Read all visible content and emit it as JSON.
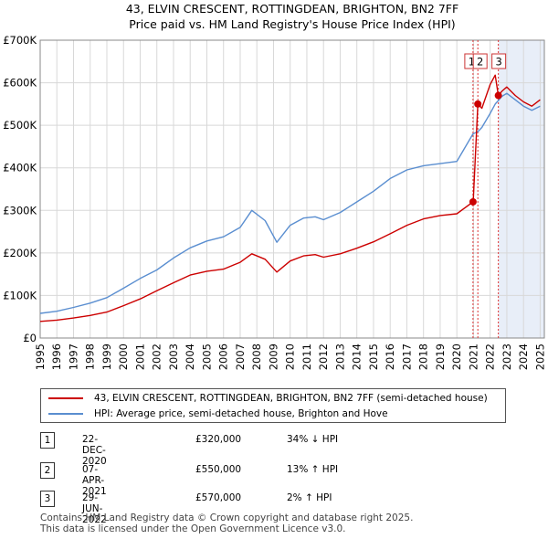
{
  "chart_data": {
    "type": "line",
    "title": "43, ELVIN CRESCENT, ROTTINGDEAN, BRIGHTON, BN2 7FF",
    "subtitle": "Price paid vs. HM Land Registry's House Price Index (HPI)",
    "xlim": [
      1995,
      2025.25
    ],
    "ylim": [
      0,
      700000
    ],
    "y_ticks": [
      {
        "value": 0,
        "label": "£0"
      },
      {
        "value": 100000,
        "label": "£100K"
      },
      {
        "value": 200000,
        "label": "£200K"
      },
      {
        "value": 300000,
        "label": "£300K"
      },
      {
        "value": 400000,
        "label": "£400K"
      },
      {
        "value": 500000,
        "label": "£500K"
      },
      {
        "value": 600000,
        "label": "£600K"
      },
      {
        "value": 700000,
        "label": "£700K"
      }
    ],
    "x_ticks": [
      "1995",
      "1996",
      "1997",
      "1998",
      "1999",
      "2000",
      "2001",
      "2002",
      "2003",
      "2004",
      "2005",
      "2006",
      "2007",
      "2008",
      "2009",
      "2010",
      "2011",
      "2012",
      "2013",
      "2014",
      "2015",
      "2016",
      "2017",
      "2018",
      "2019",
      "2020",
      "2021",
      "2022",
      "2023",
      "2024",
      "2025"
    ],
    "shaded_region": [
      2022.5,
      2025.25
    ],
    "series": [
      {
        "name": "43, ELVIN CRESCENT, ROTTINGDEAN, BRIGHTON, BN2 7FF (semi-detached house)",
        "color": "#cc0000",
        "x": [
          1995,
          1996,
          1997,
          1998,
          1999,
          2000,
          2001,
          2002,
          2003,
          2004,
          2005,
          2006,
          2007,
          2007.7,
          2008.5,
          2009.2,
          2010,
          2010.8,
          2011.5,
          2012,
          2013,
          2014,
          2015,
          2016,
          2017,
          2018,
          2019,
          2020,
          2020.97,
          2020.98,
          2021.26,
          2021.27,
          2021.5,
          2022,
          2022.3,
          2022.49,
          2022.7,
          2023,
          2023.5,
          2024,
          2024.5,
          2025
        ],
        "y": [
          39000,
          42000,
          47000,
          53000,
          61000,
          76000,
          92000,
          111000,
          130000,
          148000,
          157000,
          162000,
          178000,
          198000,
          185000,
          155000,
          181000,
          193000,
          196000,
          190000,
          198000,
          211000,
          226000,
          245000,
          265000,
          280000,
          288000,
          292000,
          320000,
          320000,
          550000,
          550000,
          540000,
          596000,
          618000,
          570000,
          580000,
          590000,
          570000,
          555000,
          545000,
          560000
        ]
      },
      {
        "name": "HPI: Average price, semi-detached house, Brighton and Hove",
        "color": "#5a8ed0",
        "x": [
          1995,
          1996,
          1997,
          1998,
          1999,
          2000,
          2001,
          2002,
          2003,
          2004,
          2005,
          2006,
          2007,
          2007.7,
          2008.5,
          2009.2,
          2010,
          2010.8,
          2011.5,
          2012,
          2013,
          2014,
          2015,
          2016,
          2017,
          2018,
          2019,
          2020,
          2020.97,
          2021.26,
          2021.5,
          2022,
          2022.3,
          2022.49,
          2022.7,
          2023,
          2023.5,
          2024,
          2024.5,
          2025
        ],
        "y": [
          58000,
          63000,
          72000,
          82000,
          95000,
          117000,
          140000,
          160000,
          188000,
          212000,
          228000,
          238000,
          260000,
          300000,
          276000,
          225000,
          265000,
          282000,
          285000,
          278000,
          295000,
          320000,
          345000,
          375000,
          395000,
          405000,
          410000,
          415000,
          480000,
          485000,
          495000,
          528000,
          550000,
          558000,
          568000,
          575000,
          560000,
          545000,
          535000,
          545000
        ]
      }
    ],
    "markers": [
      {
        "label": "1",
        "x": 2020.97,
        "y": 320000
      },
      {
        "label": "2",
        "x": 2021.26,
        "y": 550000
      },
      {
        "label": "3",
        "x": 2022.49,
        "y": 570000
      }
    ]
  },
  "legend": {
    "property": "43, ELVIN CRESCENT, ROTTINGDEAN, BRIGHTON, BN2 7FF (semi-detached house)",
    "hpi": "HPI: Average price, semi-detached house, Brighton and Hove"
  },
  "transactions": [
    {
      "num": "1",
      "date": "22-DEC-2020",
      "price": "£320,000",
      "hpi": "34% ↓ HPI"
    },
    {
      "num": "2",
      "date": "07-APR-2021",
      "price": "£550,000",
      "hpi": "13% ↑ HPI"
    },
    {
      "num": "3",
      "date": "29-JUN-2022",
      "price": "£570,000",
      "hpi": "2% ↑ HPI"
    }
  ],
  "footer": {
    "line1": "Contains HM Land Registry data © Crown copyright and database right 2025.",
    "line2": "This data is licensed under the Open Government Licence v3.0."
  }
}
